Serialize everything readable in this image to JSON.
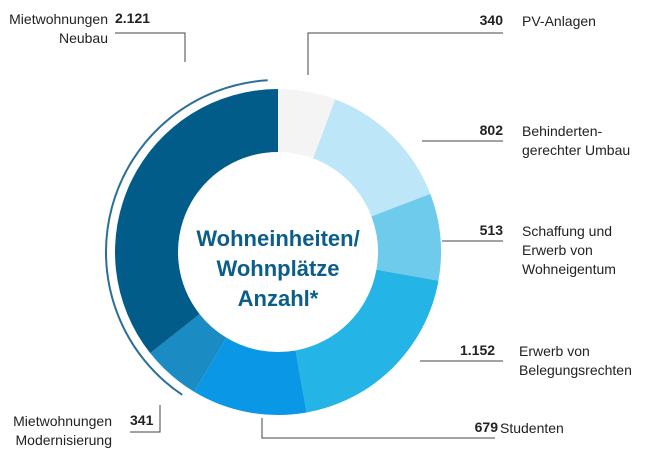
{
  "chart_data": {
    "type": "donut",
    "title": "Wohneinheiten/\nWohnplätze\nAnzahl*",
    "categories": [
      "PV-Anlagen",
      "Behinderten-\ngerechter Umbau",
      "Schaffung und\nErwerb von\nWohneigentum",
      "Erwerb von\nBelegungsrechten",
      "Studenten",
      "Mietwohnungen\nModernisierung",
      "Mietwohnungen\nNeubau"
    ],
    "values": [
      340,
      802,
      513,
      1152,
      679,
      341,
      2121
    ],
    "value_labels": [
      "340",
      "802",
      "513",
      "1.152",
      "679",
      "341",
      "2.121"
    ],
    "colors": [
      "#f4f4f4",
      "#bde6f8",
      "#6fcbec",
      "#25b4e6",
      "#0a98e6",
      "#1b8bc4",
      "#015c8a"
    ]
  }
}
